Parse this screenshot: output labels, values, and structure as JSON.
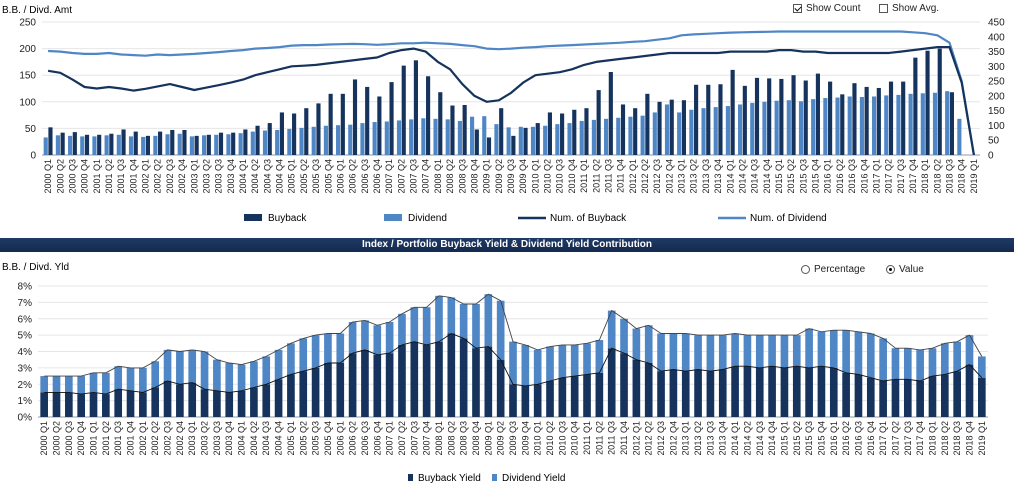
{
  "top": {
    "left_axis_title": "B.B. / Divd. Amt",
    "controls": {
      "show_count": "Show Count",
      "show_count_checked": true,
      "show_avg": "Show Avg.",
      "show_avg_checked": false
    },
    "legend": {
      "buyback": "Buyback",
      "dividend": "Dividend",
      "num_buyback": "Num. of Buyback",
      "num_dividend": "Num. of Dividend"
    }
  },
  "banner": {
    "title": "Index / Portfolio Buyback Yield & Dividend Yield Contribution"
  },
  "bottom": {
    "axis_title": "B.B. / Divd. Yld",
    "controls": {
      "percentage": "Percentage",
      "value": "Value",
      "selected": "value"
    },
    "legend": {
      "buyback_yield": "Buyback Yield",
      "dividend_yield": "Dividend Yield"
    }
  },
  "colors": {
    "buyback": "#15335c",
    "dividend": "#4f86c6",
    "num_dividend_line": "#4f86c6",
    "num_buyback_line": "#15335c",
    "banner": "#1b355f"
  },
  "chart_data": [
    {
      "type": "bar",
      "categories": [
        "2000 Q1",
        "2000 Q2",
        "2000 Q3",
        "2000 Q4",
        "2001 Q1",
        "2001 Q2",
        "2001 Q3",
        "2001 Q4",
        "2002 Q1",
        "2002 Q2",
        "2002 Q3",
        "2002 Q4",
        "2003 Q1",
        "2003 Q2",
        "2003 Q3",
        "2003 Q4",
        "2004 Q1",
        "2004 Q2",
        "2004 Q3",
        "2004 Q4",
        "2005 Q1",
        "2005 Q2",
        "2005 Q3",
        "2005 Q4",
        "2006 Q1",
        "2006 Q2",
        "2006 Q3",
        "2006 Q4",
        "2007 Q1",
        "2007 Q2",
        "2007 Q3",
        "2007 Q4",
        "2008 Q1",
        "2008 Q2",
        "2008 Q3",
        "2008 Q4",
        "2009 Q1",
        "2009 Q2",
        "2009 Q3",
        "2009 Q4",
        "2010 Q1",
        "2010 Q2",
        "2010 Q3",
        "2010 Q4",
        "2011 Q1",
        "2011 Q2",
        "2011 Q3",
        "2011 Q4",
        "2012 Q1",
        "2012 Q2",
        "2012 Q3",
        "2012 Q4",
        "2013 Q1",
        "2013 Q2",
        "2013 Q3",
        "2013 Q4",
        "2014 Q1",
        "2014 Q2",
        "2014 Q3",
        "2014 Q4",
        "2015 Q1",
        "2015 Q2",
        "2015 Q3",
        "2015 Q4",
        "2016 Q1",
        "2016 Q2",
        "2016 Q3",
        "2016 Q4",
        "2017 Q1",
        "2017 Q2",
        "2017 Q3",
        "2017 Q4",
        "2018 Q1",
        "2018 Q2",
        "2018 Q3",
        "2018 Q4",
        "2019 Q1"
      ],
      "ylim": [
        0,
        250
      ],
      "y2lim": [
        0,
        450
      ],
      "yticks": [
        0,
        50,
        100,
        150,
        200,
        250
      ],
      "y2ticks": [
        0,
        50,
        100,
        150,
        200,
        250,
        300,
        350,
        400,
        450
      ],
      "series": [
        {
          "name": "Buyback",
          "axis": "left",
          "kind": "bar",
          "values": [
            52,
            42,
            43,
            38,
            38,
            40,
            48,
            44,
            36,
            44,
            47,
            47,
            36,
            38,
            42,
            42,
            48,
            55,
            60,
            80,
            78,
            88,
            97,
            115,
            115,
            142,
            128,
            110,
            137,
            168,
            178,
            148,
            118,
            93,
            94,
            48,
            33,
            88,
            36,
            51,
            60,
            80,
            78,
            85,
            88,
            122,
            156,
            95,
            88,
            115,
            100,
            104,
            103,
            132,
            132,
            133,
            160,
            130,
            145,
            144,
            143,
            150,
            140,
            153,
            138,
            114,
            135,
            128,
            126,
            138,
            138,
            183,
            196,
            200,
            118,
            0,
            0
          ]
        },
        {
          "name": "Dividend",
          "axis": "left",
          "kind": "bar",
          "values": [
            33,
            37,
            36,
            35,
            35,
            37,
            38,
            35,
            34,
            36,
            39,
            40,
            35,
            37,
            38,
            39,
            41,
            44,
            46,
            47,
            49,
            51,
            53,
            55,
            56,
            57,
            60,
            62,
            63,
            65,
            67,
            69,
            68,
            67,
            64,
            72,
            73,
            58,
            52,
            53,
            53,
            55,
            58,
            60,
            64,
            66,
            68,
            70,
            72,
            74,
            80,
            95,
            80,
            85,
            88,
            90,
            92,
            95,
            98,
            100,
            102,
            103,
            101,
            105,
            107,
            108,
            110,
            109,
            110,
            112,
            113,
            115,
            116,
            117,
            120,
            68,
            0
          ]
        },
        {
          "name": "Num. of Buyback",
          "axis": "right",
          "kind": "line",
          "values": [
            285,
            278,
            255,
            230,
            225,
            230,
            225,
            218,
            224,
            232,
            240,
            230,
            220,
            228,
            236,
            245,
            255,
            270,
            280,
            290,
            300,
            302,
            305,
            310,
            315,
            320,
            325,
            330,
            345,
            355,
            360,
            350,
            315,
            290,
            240,
            200,
            180,
            185,
            210,
            245,
            270,
            275,
            280,
            290,
            305,
            315,
            320,
            325,
            330,
            335,
            340,
            345,
            345,
            345,
            345,
            345,
            350,
            350,
            350,
            350,
            355,
            355,
            350,
            350,
            345,
            345,
            345,
            345,
            345,
            345,
            350,
            355,
            360,
            365,
            365,
            245,
            0
          ]
        },
        {
          "name": "Num. of Dividend",
          "axis": "right",
          "kind": "line",
          "values": [
            352,
            350,
            345,
            342,
            342,
            345,
            340,
            338,
            336,
            340,
            338,
            340,
            342,
            345,
            348,
            352,
            355,
            360,
            362,
            365,
            370,
            372,
            372,
            374,
            375,
            376,
            375,
            373,
            375,
            378,
            378,
            380,
            378,
            376,
            372,
            368,
            360,
            358,
            360,
            363,
            365,
            368,
            370,
            372,
            374,
            376,
            378,
            380,
            383,
            385,
            390,
            395,
            405,
            408,
            410,
            412,
            414,
            415,
            416,
            417,
            418,
            418,
            418,
            418,
            418,
            418,
            418,
            418,
            418,
            418,
            418,
            415,
            412,
            405,
            380,
            250,
            0
          ]
        }
      ]
    },
    {
      "type": "area",
      "categories": [
        "2000 Q1",
        "2000 Q2",
        "2000 Q3",
        "2000 Q4",
        "2001 Q1",
        "2001 Q2",
        "2001 Q3",
        "2001 Q4",
        "2002 Q1",
        "2002 Q2",
        "2002 Q3",
        "2002 Q4",
        "2003 Q1",
        "2003 Q2",
        "2003 Q3",
        "2003 Q4",
        "2004 Q1",
        "2004 Q2",
        "2004 Q3",
        "2004 Q4",
        "2005 Q1",
        "2005 Q2",
        "2005 Q3",
        "2005 Q4",
        "2006 Q1",
        "2006 Q2",
        "2006 Q3",
        "2006 Q4",
        "2007 Q1",
        "2007 Q2",
        "2007 Q3",
        "2007 Q4",
        "2008 Q1",
        "2008 Q2",
        "2008 Q3",
        "2008 Q4",
        "2009 Q1",
        "2009 Q2",
        "2009 Q3",
        "2009 Q4",
        "2010 Q1",
        "2010 Q2",
        "2010 Q3",
        "2010 Q4",
        "2011 Q1",
        "2011 Q2",
        "2011 Q3",
        "2011 Q4",
        "2012 Q1",
        "2012 Q2",
        "2012 Q3",
        "2012 Q4",
        "2013 Q1",
        "2013 Q2",
        "2013 Q3",
        "2013 Q4",
        "2014 Q1",
        "2014 Q2",
        "2014 Q3",
        "2014 Q4",
        "2015 Q1",
        "2015 Q2",
        "2015 Q3",
        "2015 Q4",
        "2016 Q1",
        "2016 Q2",
        "2016 Q3",
        "2016 Q4",
        "2017 Q1",
        "2017 Q2",
        "2017 Q3",
        "2017 Q4",
        "2018 Q1",
        "2018 Q2",
        "2018 Q3",
        "2018 Q4",
        "2019 Q1"
      ],
      "ylim": [
        0,
        8
      ],
      "yticks": [
        0,
        1,
        2,
        3,
        4,
        5,
        6,
        7,
        8
      ],
      "yformat": "%",
      "series": [
        {
          "name": "Buyback Yield",
          "values": [
            1.5,
            1.5,
            1.5,
            1.4,
            1.5,
            1.4,
            1.7,
            1.6,
            1.5,
            1.8,
            2.2,
            2.0,
            2.1,
            1.7,
            1.6,
            1.5,
            1.6,
            1.8,
            2.0,
            2.3,
            2.6,
            2.8,
            3.0,
            3.3,
            3.3,
            3.9,
            4.1,
            3.8,
            3.9,
            4.4,
            4.6,
            4.4,
            4.6,
            5.1,
            4.8,
            4.2,
            4.3,
            3.5,
            2.0,
            1.9,
            2.0,
            2.2,
            2.4,
            2.5,
            2.6,
            2.7,
            4.2,
            3.9,
            3.5,
            3.3,
            2.8,
            2.9,
            2.8,
            2.9,
            2.8,
            2.9,
            3.1,
            3.1,
            3.0,
            3.1,
            3.0,
            3.1,
            3.0,
            3.1,
            3.0,
            2.7,
            2.6,
            2.4,
            2.2,
            2.3,
            2.3,
            2.2,
            2.5,
            2.6,
            2.8,
            3.2,
            2.4
          ]
        },
        {
          "name": "Dividend Yield",
          "values": [
            1.0,
            1.0,
            1.0,
            1.1,
            1.2,
            1.3,
            1.4,
            1.4,
            1.5,
            1.6,
            1.9,
            2.0,
            2.0,
            2.3,
            1.9,
            1.8,
            1.6,
            1.6,
            1.7,
            1.8,
            1.9,
            2.0,
            2.0,
            1.8,
            1.8,
            1.9,
            1.8,
            1.8,
            1.9,
            1.9,
            2.1,
            2.3,
            2.8,
            2.2,
            2.1,
            2.7,
            3.2,
            3.6,
            2.6,
            2.5,
            2.1,
            2.1,
            2.0,
            1.9,
            1.9,
            2.0,
            2.3,
            2.1,
            1.9,
            2.3,
            2.3,
            2.2,
            2.3,
            2.1,
            2.2,
            2.1,
            2.0,
            1.9,
            2.0,
            1.9,
            2.0,
            1.9,
            2.4,
            2.1,
            2.3,
            2.6,
            2.6,
            2.7,
            2.6,
            1.9,
            1.9,
            1.9,
            1.7,
            1.9,
            1.8,
            1.8,
            1.3
          ]
        }
      ]
    }
  ]
}
